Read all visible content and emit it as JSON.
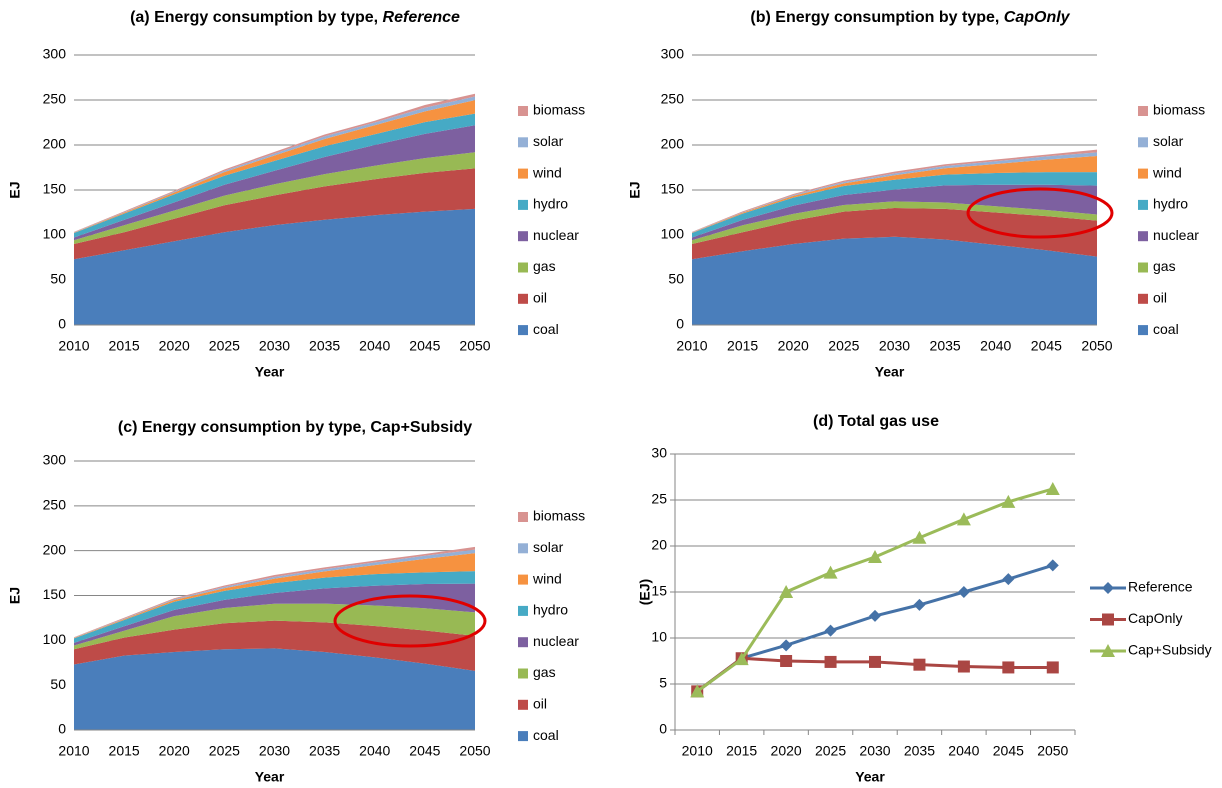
{
  "chart_data": [
    {
      "type": "stacked_area",
      "title": "(a) Energy consumption  by type, ",
      "title_italic": "Reference",
      "xlabel": "Year",
      "ylabel": "EJ",
      "categories": [
        "2010",
        "2015",
        "2020",
        "2025",
        "2030",
        "2035",
        "2040",
        "2045",
        "2050"
      ],
      "ylim": [
        0,
        300
      ],
      "yticks": [
        0,
        50,
        100,
        150,
        200,
        250,
        300
      ],
      "grid": true,
      "legend": "right",
      "series": [
        {
          "name": "coal",
          "color": "#4a7ebb",
          "values": [
            73,
            83,
            93,
            103,
            111,
            117,
            122,
            126,
            129
          ]
        },
        {
          "name": "oil",
          "color": "#be4b48",
          "values": [
            17,
            20,
            25,
            30,
            33,
            37,
            40,
            43,
            45
          ]
        },
        {
          "name": "gas",
          "color": "#98b954",
          "values": [
            4.2,
            7.8,
            9.2,
            10.8,
            12.4,
            13.6,
            15,
            16.4,
            17.9
          ]
        },
        {
          "name": "nuclear",
          "color": "#7d60a0",
          "values": [
            3,
            6,
            9,
            12,
            15,
            19,
            23,
            27,
            30
          ]
        },
        {
          "name": "hydro",
          "color": "#46aac5",
          "values": [
            5,
            7,
            9,
            10,
            11,
            12,
            12,
            13,
            13
          ]
        },
        {
          "name": "wind",
          "color": "#f69240",
          "values": [
            0.5,
            1,
            2,
            4,
            6,
            8,
            10,
            12,
            15
          ]
        },
        {
          "name": "solar",
          "color": "#94b0d6",
          "values": [
            0.3,
            0.5,
            1,
            1.5,
            2,
            3,
            3,
            4,
            4
          ]
        },
        {
          "name": "biomass",
          "color": "#d89391",
          "values": [
            0.5,
            1,
            1,
            1.5,
            2,
            2,
            2,
            3,
            3
          ]
        }
      ]
    },
    {
      "type": "stacked_area",
      "title": "(b) Energy consumption  by type, ",
      "title_italic": "CapOnly",
      "xlabel": "Year",
      "ylabel": "EJ",
      "categories": [
        "2010",
        "2015",
        "2020",
        "2025",
        "2030",
        "2035",
        "2040",
        "2045",
        "2050"
      ],
      "ylim": [
        0,
        300
      ],
      "yticks": [
        0,
        50,
        100,
        150,
        200,
        250,
        300
      ],
      "grid": true,
      "legend": "right",
      "series": [
        {
          "name": "coal",
          "color": "#4a7ebb",
          "values": [
            73,
            82,
            90,
            96,
            98,
            95,
            89,
            83,
            76
          ]
        },
        {
          "name": "oil",
          "color": "#be4b48",
          "values": [
            17,
            21,
            26,
            30,
            32,
            34,
            36,
            38,
            40
          ]
        },
        {
          "name": "gas",
          "color": "#98b954",
          "values": [
            4.2,
            7.8,
            7.5,
            7.4,
            7.4,
            7.1,
            6.9,
            6.8,
            6.8
          ]
        },
        {
          "name": "nuclear",
          "color": "#7d60a0",
          "values": [
            3,
            6,
            9,
            11,
            13,
            19,
            24,
            28,
            32
          ]
        },
        {
          "name": "hydro",
          "color": "#46aac5",
          "values": [
            5,
            7,
            9,
            10,
            11,
            12,
            13,
            14,
            15
          ]
        },
        {
          "name": "wind",
          "color": "#f69240",
          "values": [
            0.5,
            1,
            2,
            3,
            5,
            7,
            10,
            14,
            18
          ]
        },
        {
          "name": "solar",
          "color": "#94b0d6",
          "values": [
            0.3,
            0.5,
            1,
            1.5,
            2,
            2.5,
            3,
            3.5,
            4
          ]
        },
        {
          "name": "biomass",
          "color": "#d89391",
          "values": [
            0.5,
            1,
            1,
            1.5,
            2,
            2,
            2,
            2,
            3
          ]
        }
      ]
    },
    {
      "type": "stacked_area",
      "title": "(c) Energy consumption  by type, Cap+Subsidy",
      "xlabel": "Year",
      "ylabel": "EJ",
      "categories": [
        "2010",
        "2015",
        "2020",
        "2025",
        "2030",
        "2035",
        "2040",
        "2045",
        "2050"
      ],
      "ylim": [
        0,
        300
      ],
      "yticks": [
        0,
        50,
        100,
        150,
        200,
        250,
        300
      ],
      "grid": true,
      "legend": "right",
      "series": [
        {
          "name": "coal",
          "color": "#4a7ebb",
          "values": [
            73,
            83,
            87,
            90,
            91,
            87,
            81,
            74,
            66
          ]
        },
        {
          "name": "oil",
          "color": "#be4b48",
          "values": [
            17,
            20,
            25,
            29,
            31,
            33,
            35,
            37,
            39
          ]
        },
        {
          "name": "gas",
          "color": "#98b954",
          "values": [
            4.2,
            7.7,
            15,
            17.1,
            18.8,
            20.9,
            22.9,
            24.8,
            26.2
          ]
        },
        {
          "name": "nuclear",
          "color": "#7d60a0",
          "values": [
            3,
            5,
            7,
            9,
            12,
            17,
            22,
            27,
            32
          ]
        },
        {
          "name": "hydro",
          "color": "#46aac5",
          "values": [
            5,
            7,
            9,
            10,
            11,
            12,
            13,
            13,
            14
          ]
        },
        {
          "name": "wind",
          "color": "#f69240",
          "values": [
            0.5,
            1,
            2,
            3,
            5,
            7,
            10,
            15,
            20
          ]
        },
        {
          "name": "solar",
          "color": "#94b0d6",
          "values": [
            0.3,
            0.5,
            1,
            1.5,
            2,
            2.5,
            3,
            3.5,
            4
          ]
        },
        {
          "name": "biomass",
          "color": "#d89391",
          "values": [
            0.5,
            1,
            1,
            1.5,
            2,
            2,
            2,
            2,
            3
          ]
        }
      ]
    },
    {
      "type": "line",
      "title": "(d) Total gas use",
      "xlabel": "Year",
      "ylabel": "(EJ)",
      "categories": [
        "2010",
        "2015",
        "2020",
        "2025",
        "2030",
        "2035",
        "2040",
        "2045",
        "2050"
      ],
      "ylim": [
        0,
        30
      ],
      "yticks": [
        0,
        5,
        10,
        15,
        20,
        25,
        30
      ],
      "grid": true,
      "legend": "right",
      "series": [
        {
          "name": "Reference",
          "color": "#4572a7",
          "marker": "diamond",
          "values": [
            4.2,
            7.8,
            9.2,
            10.8,
            12.4,
            13.6,
            15,
            16.4,
            17.9
          ]
        },
        {
          "name": "CapOnly",
          "color": "#aa4643",
          "marker": "square",
          "values": [
            4.2,
            7.8,
            7.5,
            7.4,
            7.4,
            7.1,
            6.9,
            6.8,
            6.8
          ]
        },
        {
          "name": "Cap+Subsidy",
          "color": "#9bbb59",
          "marker": "triangle",
          "values": [
            4.2,
            7.7,
            15,
            17.1,
            18.8,
            20.9,
            22.9,
            24.8,
            26.2
          ]
        }
      ]
    }
  ]
}
